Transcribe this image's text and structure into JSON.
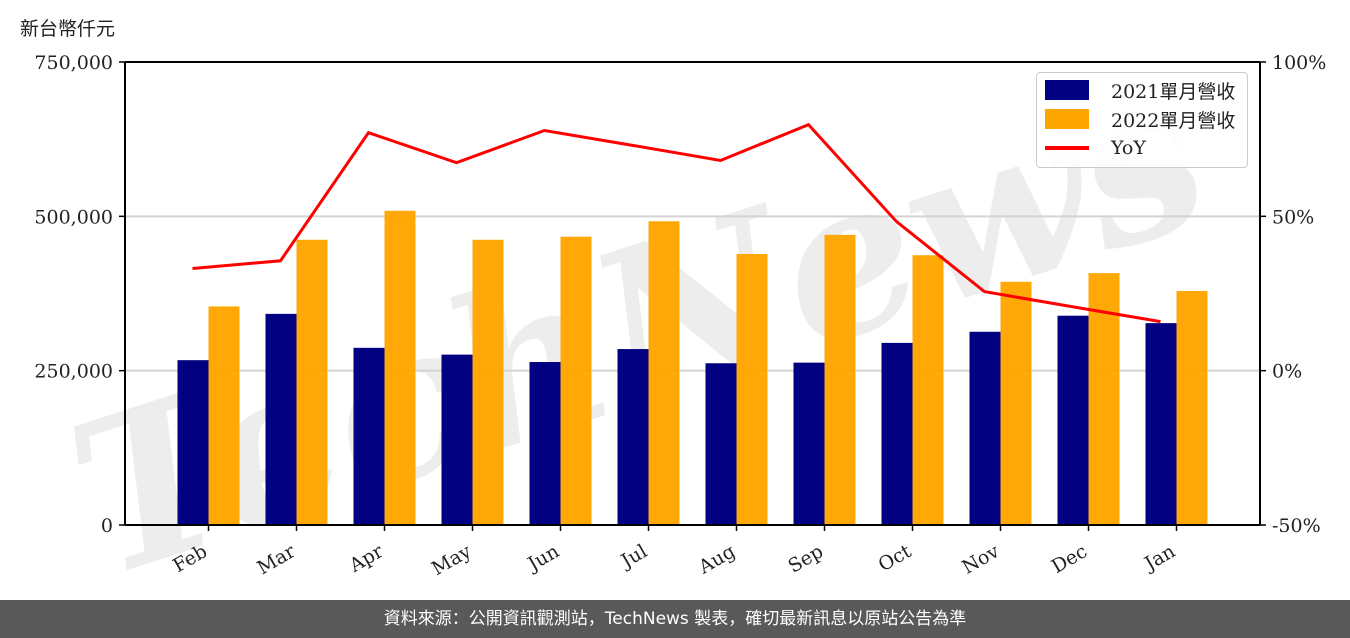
{
  "unit_label": "新台幣仟元",
  "footer": "資料來源：公開資訊觀測站，TechNews 製表，確切最新訊息以原站公告為準",
  "watermark": "TechNews",
  "legend": {
    "items": [
      {
        "label": "2021單月營收",
        "type": "bar",
        "color": "#000080"
      },
      {
        "label": "2022單月營收",
        "type": "bar",
        "color": "#FFA500"
      },
      {
        "label": "YoY",
        "type": "line",
        "color": "#FF0000"
      }
    ]
  },
  "chart_data": {
    "type": "bar",
    "title": "",
    "xlabel": "",
    "ylabel": "新台幣仟元",
    "y2label": "",
    "categories": [
      "Feb",
      "Mar",
      "Apr",
      "May",
      "Jun",
      "Jul",
      "Aug",
      "Sep",
      "Oct",
      "Nov",
      "Dec",
      "Jan"
    ],
    "series": [
      {
        "name": "2021單月營收",
        "type": "bar",
        "axis": "left",
        "color": "#000080",
        "values": [
          267000,
          342000,
          287000,
          276000,
          264000,
          285000,
          262000,
          263000,
          295000,
          313000,
          339000,
          327000
        ]
      },
      {
        "name": "2022單月營收",
        "type": "bar",
        "axis": "left",
        "color": "#FFA500",
        "values": [
          354000,
          462000,
          509000,
          462000,
          467000,
          492000,
          439000,
          470000,
          437000,
          394000,
          408000,
          379000
        ]
      },
      {
        "name": "YoY",
        "type": "line",
        "axis": "right",
        "color": "#FF0000",
        "values": [
          33.1,
          35.6,
          77.1,
          67.4,
          77.8,
          73.0,
          68.1,
          79.7,
          48.3,
          25.6,
          20.7,
          15.9
        ]
      }
    ],
    "ylim": [
      0,
      750000
    ],
    "y_ticks": [
      0,
      250000,
      500000,
      750000
    ],
    "y_tick_labels": [
      "0",
      "250,000",
      "500,000",
      "750,000"
    ],
    "y2lim": [
      -50,
      100
    ],
    "y2_ticks": [
      -50,
      0,
      50,
      100
    ],
    "y2_tick_labels": [
      "-50%",
      "0%",
      "50%",
      "100%"
    ],
    "grid": "horizontal",
    "legend_position": "upper right"
  }
}
